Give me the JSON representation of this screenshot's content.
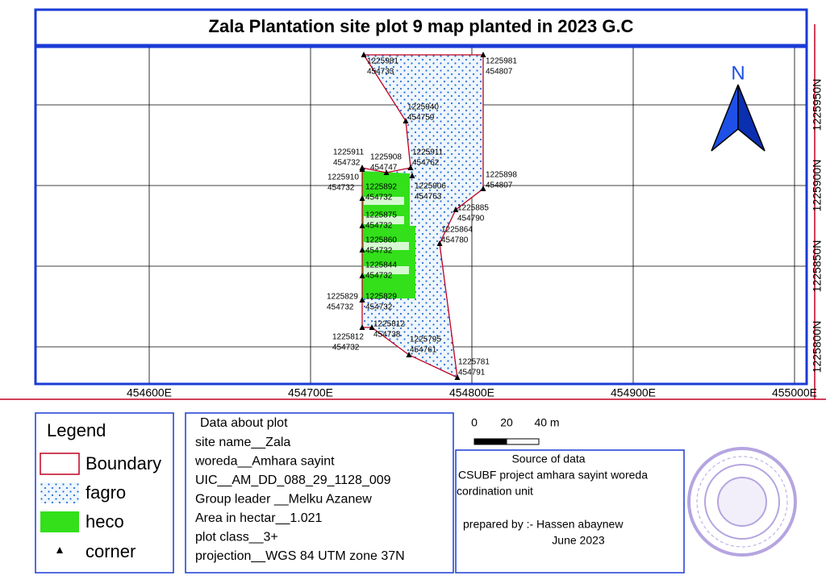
{
  "title": "Zala Plantation site plot 9 map planted in 2023 G.C",
  "map": {
    "x_ticks": [
      {
        "value": 454600,
        "label": "454600E"
      },
      {
        "value": 454700,
        "label": "454700E"
      },
      {
        "value": 454800,
        "label": "454800E"
      },
      {
        "value": 454900,
        "label": "454900E"
      },
      {
        "value": 455000,
        "label": "455000E"
      }
    ],
    "y_ticks": [
      {
        "value": 1225800,
        "label": "1225800N"
      },
      {
        "value": 1225850,
        "label": "1225850N"
      },
      {
        "value": 1225900,
        "label": "1225900N"
      },
      {
        "value": 1225950,
        "label": "1225950N"
      }
    ],
    "north": "N",
    "corners": [
      {
        "northing": 1225981,
        "easting": 454733
      },
      {
        "northing": 1225981,
        "easting": 454807
      },
      {
        "northing": 1225940,
        "easting": 454759
      },
      {
        "northing": 1225911,
        "easting": 454732
      },
      {
        "northing": 1225908,
        "easting": 454747
      },
      {
        "northing": 1225911,
        "easting": 454762
      },
      {
        "northing": 1225898,
        "easting": 454807
      },
      {
        "northing": 1225910,
        "easting": 454732
      },
      {
        "northing": 1225906,
        "easting": 454763
      },
      {
        "northing": 1225892,
        "easting": 454732
      },
      {
        "northing": 1225885,
        "easting": 454790
      },
      {
        "northing": 1225875,
        "easting": 454732
      },
      {
        "northing": 1225864,
        "easting": 454780
      },
      {
        "northing": 1225860,
        "easting": 454732
      },
      {
        "northing": 1225844,
        "easting": 454732
      },
      {
        "northing": 1225829,
        "easting": 454732
      },
      {
        "northing": 1225829,
        "easting": 454732
      },
      {
        "northing": 1225812,
        "easting": 454738
      },
      {
        "northing": 1225812,
        "easting": 454732
      },
      {
        "northing": 1225795,
        "easting": 454761
      },
      {
        "northing": 1225781,
        "easting": 454791
      }
    ]
  },
  "legend": {
    "title": "Legend",
    "items": [
      "Boundary",
      "fagro",
      "heco",
      "corner"
    ]
  },
  "plot_info": {
    "title": "Data about plot",
    "lines": [
      "site name__Zala",
      "woreda__Amhara sayint",
      "UIC__AM_DD_088_29_1128_009",
      "Group leader __Melku Azanew",
      "Area in hectar__1.021",
      "plot class__3+",
      "projection__WGS 84 UTM zone 37N"
    ]
  },
  "scale": {
    "labels": [
      "0",
      "20",
      "40 m"
    ]
  },
  "source": {
    "lines": [
      "Source of data",
      "CSUBF project amhara sayint woreda",
      "cordination unit",
      "prepared by :- Hassen abaynew",
      "June 2023"
    ]
  }
}
